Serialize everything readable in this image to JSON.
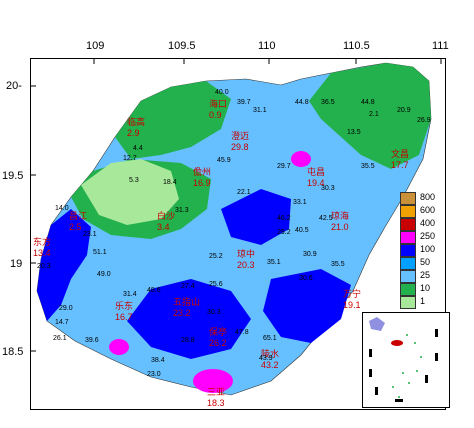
{
  "axes": {
    "x_ticks": [
      "109",
      "109.5",
      "110",
      "110.5",
      "111"
    ],
    "y_ticks": [
      "20-",
      "19.5",
      "19",
      "18.5"
    ]
  },
  "legend": {
    "levels": [
      "800",
      "600",
      "400",
      "250",
      "100",
      "50",
      "25",
      "10",
      "1"
    ],
    "colors": [
      "#c9913a",
      "#f0a000",
      "#c80000",
      "#ff00ff",
      "#0000ff",
      "#00a0ff",
      "#66c0ff",
      "#22b14c",
      "#a8e89a"
    ]
  },
  "stations": [
    {
      "name": "海口",
      "value": "0.9"
    },
    {
      "name": "临高",
      "value": "2.9"
    },
    {
      "name": "澄迈",
      "value": "29.8"
    },
    {
      "name": "文昌",
      "value": "17.7"
    },
    {
      "name": "儋州",
      "value": "16.9"
    },
    {
      "name": "屯昌",
      "value": "19.4"
    },
    {
      "name": "白沙",
      "value": "3.4"
    },
    {
      "name": "琼中",
      "value": "20.3"
    },
    {
      "name": "琼海",
      "value": "21.0"
    },
    {
      "name": "昌江",
      "value": "2.5"
    },
    {
      "name": "东方",
      "value": "13.4"
    },
    {
      "name": "万宁",
      "value": "19.1"
    },
    {
      "name": "保亭",
      "value": "26.2"
    },
    {
      "name": "三亚",
      "value": "18.3"
    },
    {
      "name": "乐东",
      "value": "16.7"
    },
    {
      "name": "五指山",
      "value": "23.2"
    },
    {
      "name": "陵水",
      "value": "43.2"
    }
  ],
  "values": [
    "40.0",
    "39.7",
    "31.1",
    "44.8",
    "36.5",
    "44.8",
    "2.1",
    "20.9",
    "26.9",
    "13.5",
    "12.7",
    "4.4",
    "45.9",
    "30.3",
    "35.5",
    "29.7",
    "14.0",
    "23.1",
    "5.3",
    "18.4",
    "22.1",
    "31.3",
    "25.2",
    "46.2",
    "42.5",
    "33.1",
    "40.5",
    "29.2",
    "51.1",
    "20.3",
    "49.0",
    "30.9",
    "35.5",
    "30.6",
    "31.4",
    "27.4",
    "25.6",
    "30.3",
    "35.1",
    "48.6",
    "29.0",
    "14.7",
    "26.1",
    "39.6",
    "28.8",
    "47.8",
    "38.4",
    "65.1",
    "23.0",
    "43.9"
  ]
}
